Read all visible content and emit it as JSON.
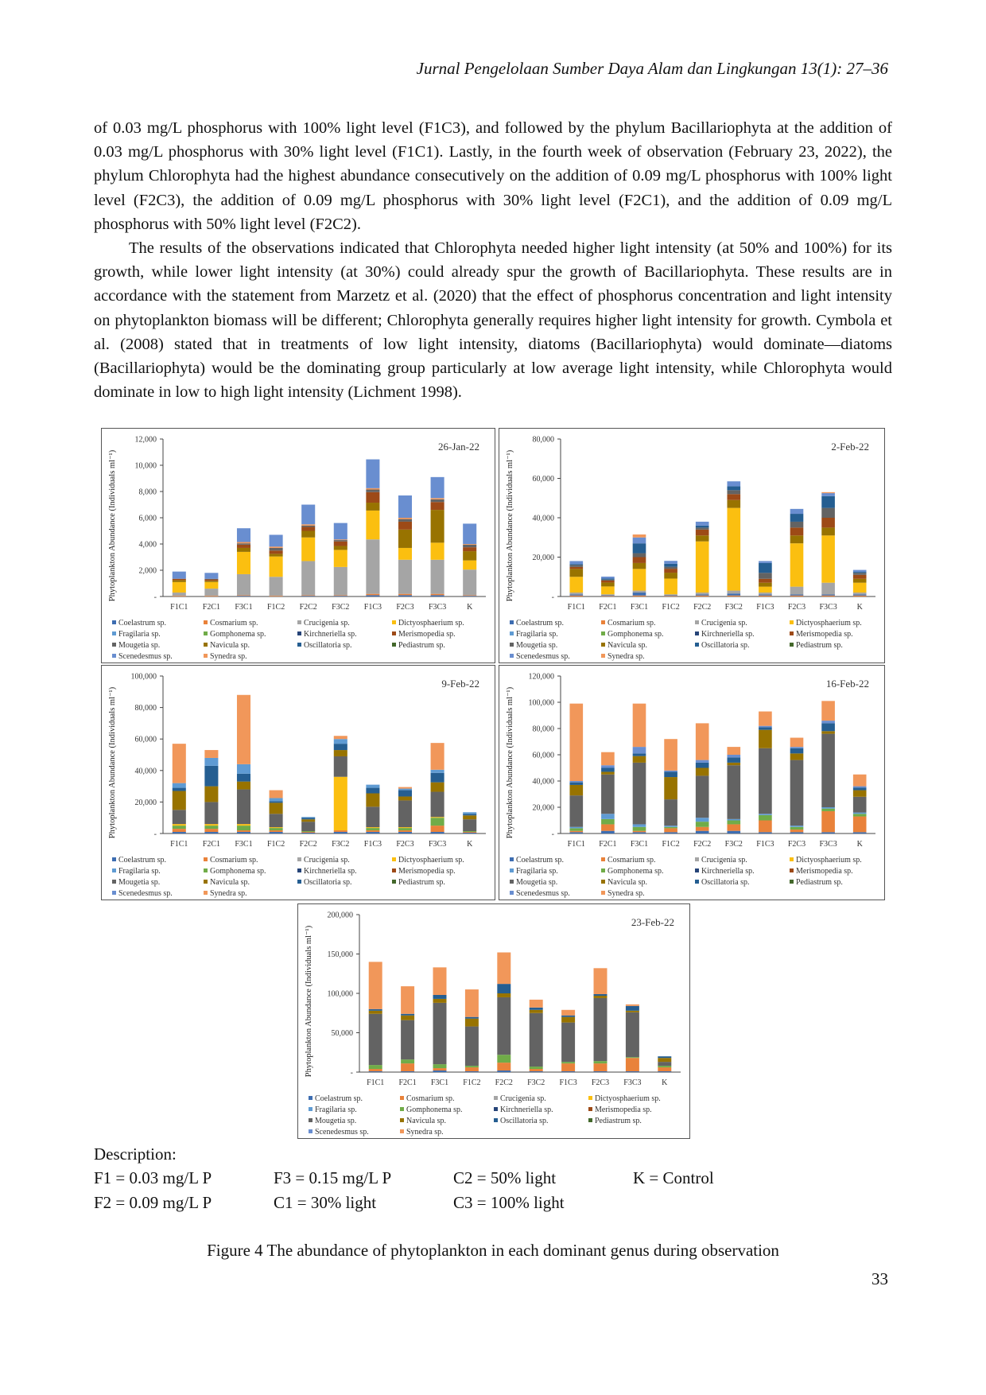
{
  "header": "Jurnal Pengelolaan Sumber Daya Alam dan Lingkungan 13(1): 27–36",
  "paragraphs": [
    "of 0.03 mg/L phosphorus with 100% light level (F1C3), and followed by the phylum Bacillariophyta at the addition of 0.03 mg/L phosphorus with 30% light level (F1C1). Lastly, in the fourth week of observation (February 23, 2022), the phylum Chlorophyta had the highest abundance consecutively on the addition of 0.09 mg/L phosphorus with 100% light level (F2C3), the addition of 0.09 mg/L phosphorus with 30% light level (F2C1), and the addition of 0.09 mg/L phosphorus with 50% light level (F2C2).",
    "The results of the observations indicated that Chlorophyta needed higher light intensity (at 50% and 100%) for its growth, while lower light intensity (at 30%) could already spur the growth of Bacillariophyta. These results are in accordance with the statement from Marzetz et al. (2020) that the effect of phosphorus concentration and light intensity on phytoplankton biomass will be different; Chlorophyta generally requires higher light intensity for growth. Cymbola et al. (2008) stated that in treatments of low light intensity, diatoms (Bacillariophyta) would dominate—diatoms (Bacillariophyta) would be the dominating group particularly at low average light intensity, while Chlorophyta would dominate in low to high light intensity (Lichment 1998)."
  ],
  "species": [
    {
      "name": "Coelastrum sp.",
      "color": "#3d6db1"
    },
    {
      "name": "Cosmarium sp.",
      "color": "#e9823a"
    },
    {
      "name": "Crucigenia sp.",
      "color": "#a5a5a5"
    },
    {
      "name": "Dictyosphaerium sp.",
      "color": "#fbbf10"
    },
    {
      "name": "Fragilaria sp.",
      "color": "#5f9bd3"
    },
    {
      "name": "Gomphonema sp.",
      "color": "#70ac48"
    },
    {
      "name": "Kirchneriella sp.",
      "color": "#264478"
    },
    {
      "name": "Merismopedia sp.",
      "color": "#9d4a17"
    },
    {
      "name": "Mougetia sp.",
      "color": "#636363"
    },
    {
      "name": "Navicula sp.",
      "color": "#987300"
    },
    {
      "name": "Oscillatoria sp.",
      "color": "#255e91"
    },
    {
      "name": "Pediastrum sp.",
      "color": "#43682b"
    },
    {
      "name": "Scenedesmus sp.",
      "color": "#698ed0"
    },
    {
      "name": "Synedra sp.",
      "color": "#f1975a"
    }
  ],
  "chart_data": [
    {
      "type": "bar",
      "stacked": true,
      "title": "26-Jan-22",
      "ylabel": "Phytoplankton Abundance (Individuals ml⁻¹)",
      "ylim": [
        0,
        12000
      ],
      "yticks": [
        "-",
        "2,000",
        "4,000",
        "6,000",
        "8,000",
        "10,000",
        "12,000"
      ],
      "categories": [
        "F1C1",
        "F2C1",
        "F3C1",
        "F1C2",
        "F2C2",
        "F3C2",
        "F1C3",
        "F2C3",
        "F3C3",
        "K"
      ],
      "series": [
        {
          "name": "Coelastrum sp.",
          "values": [
            0,
            0,
            50,
            0,
            50,
            50,
            100,
            100,
            100,
            50
          ]
        },
        {
          "name": "Cosmarium sp.",
          "values": [
            50,
            50,
            50,
            50,
            50,
            50,
            100,
            100,
            100,
            50
          ]
        },
        {
          "name": "Crucigenia sp.",
          "values": [
            250,
            550,
            1600,
            1450,
            2600,
            2150,
            4150,
            2600,
            2600,
            1950
          ]
        },
        {
          "name": "Dictyosphaerium sp.",
          "values": [
            800,
            500,
            1700,
            1550,
            1800,
            1300,
            2200,
            900,
            1300,
            700
          ]
        },
        {
          "name": "Navicula sp.",
          "values": [
            150,
            100,
            300,
            200,
            500,
            300,
            600,
            1400,
            2500,
            700
          ]
        },
        {
          "name": "Merismopedia sp.",
          "values": [
            100,
            100,
            250,
            250,
            300,
            350,
            800,
            600,
            600,
            300
          ]
        },
        {
          "name": "Mougetia sp.",
          "values": [
            0,
            50,
            100,
            200,
            100,
            100,
            200,
            200,
            200,
            200
          ]
        },
        {
          "name": "Synedra sp.",
          "values": [
            0,
            0,
            100,
            100,
            100,
            50,
            100,
            100,
            100,
            50
          ]
        },
        {
          "name": "Scenedesmus sp.",
          "values": [
            550,
            450,
            1050,
            900,
            1500,
            1250,
            2200,
            1700,
            1600,
            1550
          ]
        }
      ]
    },
    {
      "type": "bar",
      "stacked": true,
      "title": "2-Feb-22",
      "ylabel": "Phytoplankton Abundance (Individuals ml⁻¹)",
      "ylim": [
        0,
        80000
      ],
      "yticks": [
        "-",
        "20,000",
        "40,000",
        "60,000",
        "80,000"
      ],
      "categories": [
        "F1C1",
        "F2C1",
        "F3C1",
        "F1C2",
        "F2C2",
        "F3C2",
        "F1C3",
        "F2C3",
        "F3C3",
        "K"
      ],
      "series": [
        {
          "name": "Cosmarium sp.",
          "values": [
            500,
            300,
            500,
            300,
            500,
            500,
            500,
            500,
            500,
            500
          ]
        },
        {
          "name": "Coelastrum sp.",
          "values": [
            500,
            300,
            1500,
            300,
            500,
            1000,
            500,
            500,
            500,
            500
          ]
        },
        {
          "name": "Crucigenia sp.",
          "values": [
            1000,
            500,
            1000,
            500,
            1000,
            1500,
            1000,
            4000,
            6000,
            1000
          ]
        },
        {
          "name": "Dictyosphaerium sp.",
          "values": [
            8000,
            4000,
            11000,
            8000,
            26000,
            42000,
            3000,
            22000,
            24000,
            5000
          ]
        },
        {
          "name": "Navicula sp.",
          "values": [
            4000,
            2000,
            3000,
            3000,
            3000,
            4000,
            2000,
            4000,
            4000,
            2000
          ]
        },
        {
          "name": "Merismopedia sp.",
          "values": [
            1000,
            1000,
            3000,
            2000,
            3000,
            3000,
            2000,
            4000,
            5000,
            2000
          ]
        },
        {
          "name": "Mougetia sp.",
          "values": [
            1000,
            500,
            2000,
            1000,
            1000,
            2000,
            3000,
            3000,
            5000,
            1000
          ]
        },
        {
          "name": "Oscillatoria sp.",
          "values": [
            500,
            500,
            5000,
            1500,
            1000,
            2000,
            5000,
            4000,
            6000,
            500
          ]
        },
        {
          "name": "Scenedesmus sp.",
          "values": [
            1500,
            1000,
            3000,
            1500,
            2000,
            2500,
            1000,
            2500,
            1500,
            1000
          ]
        },
        {
          "name": "Synedra sp.",
          "values": [
            0,
            0,
            1500,
            0,
            0,
            0,
            0,
            0,
            500,
            0
          ]
        }
      ]
    },
    {
      "type": "bar",
      "stacked": true,
      "title": "9-Feb-22",
      "ylabel": "Phytoplankton Abundance (Individuals ml⁻¹)",
      "ylim": [
        0,
        100000
      ],
      "yticks": [
        "-",
        "20,000",
        "40,000",
        "60,000",
        "80,000",
        "100,000"
      ],
      "categories": [
        "F1C1",
        "F2C1",
        "F3C1",
        "F1C2",
        "F2C2",
        "F3C2",
        "F1C3",
        "F2C3",
        "F3C3",
        "K"
      ],
      "series": [
        {
          "name": "Coelastrum sp.",
          "values": [
            1000,
            1000,
            1000,
            1000,
            500,
            1000,
            1000,
            1000,
            1000,
            500
          ]
        },
        {
          "name": "Cosmarium sp.",
          "values": [
            2000,
            2000,
            1000,
            1000,
            500,
            1000,
            1000,
            1000,
            4000,
            500
          ]
        },
        {
          "name": "Gomphonema sp.",
          "values": [
            2000,
            2000,
            3000,
            1500,
            500,
            0,
            1500,
            1500,
            5000,
            500
          ]
        },
        {
          "name": "Dictyosphaerium sp.",
          "values": [
            1000,
            1000,
            1000,
            500,
            0,
            34000,
            500,
            500,
            500,
            0
          ]
        },
        {
          "name": "Mougetia sp.",
          "values": [
            9000,
            14000,
            22000,
            8500,
            6000,
            13000,
            13000,
            17000,
            16000,
            7500
          ]
        },
        {
          "name": "Navicula sp.",
          "values": [
            12000,
            10000,
            5000,
            7000,
            1500,
            4000,
            8500,
            2500,
            6000,
            2500
          ]
        },
        {
          "name": "Oscillatoria sp.",
          "values": [
            2000,
            13000,
            5000,
            1000,
            1000,
            4000,
            3500,
            4000,
            6000,
            1000
          ]
        },
        {
          "name": "Fragilaria sp.",
          "values": [
            3000,
            5000,
            6000,
            2000,
            500,
            3000,
            2000,
            1000,
            2000,
            1000
          ]
        },
        {
          "name": "Synedra sp.",
          "values": [
            25000,
            5000,
            44000,
            5000,
            0,
            2000,
            0,
            1000,
            17000,
            0
          ]
        }
      ]
    },
    {
      "type": "bar",
      "stacked": true,
      "title": "16-Feb-22",
      "ylabel": "Phytoplankton Abundance (Individuals ml⁻¹)",
      "ylim": [
        0,
        120000
      ],
      "yticks": [
        "-",
        "20,000",
        "40,000",
        "60,000",
        "80,000",
        "100,000",
        "120,000"
      ],
      "categories": [
        "F1C1",
        "F2C1",
        "F3C1",
        "F1C2",
        "F2C2",
        "F3C2",
        "F1C3",
        "F2C3",
        "F3C3",
        "K"
      ],
      "series": [
        {
          "name": "Coelastrum sp.",
          "values": [
            1000,
            2000,
            1000,
            1000,
            2000,
            2000,
            1000,
            1000,
            1000,
            1000
          ]
        },
        {
          "name": "Cosmarium sp.",
          "values": [
            1000,
            5000,
            1000,
            3000,
            3000,
            5000,
            9000,
            2000,
            16000,
            12000
          ]
        },
        {
          "name": "Gomphonema sp.",
          "values": [
            2000,
            4000,
            3000,
            1000,
            4000,
            3000,
            4000,
            2000,
            2000,
            2000
          ]
        },
        {
          "name": "Fragilaria sp.",
          "values": [
            1000,
            4000,
            2000,
            1000,
            3000,
            1000,
            1000,
            1000,
            1000,
            1000
          ]
        },
        {
          "name": "Mougetia sp.",
          "values": [
            24000,
            30000,
            47000,
            20000,
            32000,
            41000,
            50000,
            50000,
            56000,
            12000
          ]
        },
        {
          "name": "Navicula sp.",
          "values": [
            8000,
            2000,
            5000,
            17000,
            6000,
            2000,
            14000,
            5000,
            2000,
            5000
          ]
        },
        {
          "name": "Oscillatoria sp.",
          "values": [
            2000,
            3000,
            2000,
            4000,
            4000,
            4000,
            2000,
            4000,
            6000,
            2000
          ]
        },
        {
          "name": "Scenedesmus sp.",
          "values": [
            1000,
            2000,
            5000,
            1000,
            2000,
            2000,
            1000,
            1000,
            2000,
            1000
          ]
        },
        {
          "name": "Synedra sp.",
          "values": [
            59000,
            10000,
            33000,
            24000,
            28000,
            6000,
            11000,
            7000,
            15000,
            9000
          ]
        }
      ]
    },
    {
      "type": "bar",
      "stacked": true,
      "title": "23-Feb-22",
      "ylabel": "Phytoplankton Abundance (Individuals ml⁻¹)",
      "ylim": [
        0,
        200000
      ],
      "yticks": [
        "-",
        "50,000",
        "100,000",
        "150,000",
        "200,000"
      ],
      "categories": [
        "F1C1",
        "F2C1",
        "F3C1",
        "F1C2",
        "F2C2",
        "F3C2",
        "F1C3",
        "F2C3",
        "F3C3",
        "K"
      ],
      "series": [
        {
          "name": "Coelastrum sp.",
          "values": [
            1000,
            1000,
            2000,
            1000,
            2000,
            1000,
            1000,
            1000,
            1000,
            1000
          ]
        },
        {
          "name": "Cosmarium sp.",
          "values": [
            3000,
            10000,
            3000,
            5000,
            10000,
            3000,
            10000,
            10000,
            17000,
            5000
          ]
        },
        {
          "name": "Gomphonema sp.",
          "values": [
            5000,
            5000,
            5000,
            2000,
            10000,
            3000,
            2000,
            3000,
            1000,
            2000
          ]
        },
        {
          "name": "Mougetia sp.",
          "values": [
            65000,
            50000,
            78000,
            50000,
            73000,
            68000,
            50000,
            80000,
            57000,
            5000
          ]
        },
        {
          "name": "Navicula sp.",
          "values": [
            4000,
            6000,
            5000,
            10000,
            5000,
            4000,
            7000,
            3000,
            2000,
            5000
          ]
        },
        {
          "name": "Oscillatoria sp.",
          "values": [
            2000,
            2000,
            5000,
            2000,
            12000,
            3000,
            2000,
            2000,
            6000,
            2000
          ]
        },
        {
          "name": "Synedra sp.",
          "values": [
            60000,
            35000,
            35000,
            35000,
            40000,
            10000,
            7000,
            33000,
            2000,
            0
          ]
        }
      ]
    }
  ],
  "description": {
    "label": "Description:",
    "items": [
      "F1 = 0.03 mg/L P",
      "F3 = 0.15 mg/L P",
      "C2 = 50% light",
      "K = Control",
      "F2 = 0.09 mg/L P",
      "C1 = 30% light",
      "C3 = 100% light"
    ]
  },
  "caption": "Figure 4 The abundance of phytoplankton in each dominant genus during observation",
  "page_number": "33"
}
